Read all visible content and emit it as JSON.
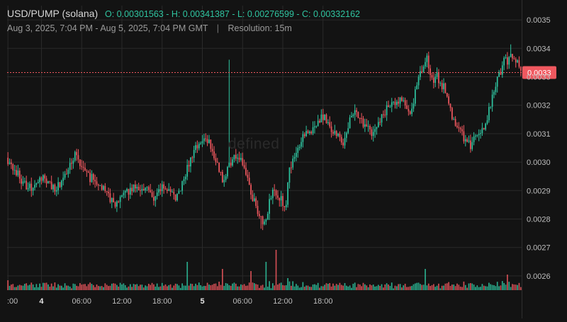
{
  "header": {
    "pair": "USD/PUMP (solana)",
    "ohlc": "O: 0.00301563 - H: 0.00341387 - L: 0.00276599 - C: 0.00332162",
    "range": "Aug 3, 2025, 7:04 PM - Aug 5, 2025, 7:04 PM GMT",
    "separator": "|",
    "resolution": "Resolution: 15m"
  },
  "watermark": "defined",
  "colors": {
    "up": "#2fc4a0",
    "down": "#f0585f",
    "background": "#131313",
    "grid": "#2a2a2a",
    "price_tag": "#f0585f"
  },
  "chart_data": {
    "type": "candlestick",
    "interval": "15m",
    "y_ticks": [
      "0.0026",
      "0.0027",
      "0.0028",
      "0.0029",
      "0.0030",
      "0.0031",
      "0.0032",
      "0.0033",
      "0.0034",
      "0.0035"
    ],
    "ylim": [
      0.00255,
      0.00355
    ],
    "x_ticks": [
      ":00",
      "4",
      "06:00",
      "12:00",
      "18:00",
      "5",
      "06:00",
      "12:00",
      "18:00"
    ],
    "current_price_label": "0.0033",
    "current_price": 0.003315,
    "open": 0.00301563,
    "high": 0.00341387,
    "low": 0.00276599,
    "close": 0.00332162,
    "anchors": [
      [
        0,
        0.003
      ],
      [
        4,
        0.00298
      ],
      [
        8,
        0.00293
      ],
      [
        12,
        0.00291
      ],
      [
        16,
        0.00292
      ],
      [
        20,
        0.00294
      ],
      [
        24,
        0.00293
      ],
      [
        28,
        0.0029
      ],
      [
        32,
        0.00293
      ],
      [
        36,
        0.00299
      ],
      [
        40,
        0.00302
      ],
      [
        44,
        0.00298
      ],
      [
        48,
        0.00295
      ],
      [
        52,
        0.00294
      ],
      [
        56,
        0.00291
      ],
      [
        60,
        0.00288
      ],
      [
        64,
        0.00285
      ],
      [
        68,
        0.00287
      ],
      [
        72,
        0.0029
      ],
      [
        76,
        0.00291
      ],
      [
        80,
        0.00289
      ],
      [
        84,
        0.0029
      ],
      [
        88,
        0.00287
      ],
      [
        92,
        0.00291
      ],
      [
        96,
        0.0029
      ],
      [
        100,
        0.00286
      ],
      [
        104,
        0.00292
      ],
      [
        108,
        0.003
      ],
      [
        112,
        0.00305
      ],
      [
        116,
        0.00308
      ],
      [
        118,
        0.00307
      ],
      [
        120,
        0.00307
      ],
      [
        124,
        0.003
      ],
      [
        128,
        0.00294
      ],
      [
        132,
        0.00299
      ],
      [
        136,
        0.00303
      ],
      [
        140,
        0.003
      ],
      [
        144,
        0.00292
      ],
      [
        148,
        0.00284
      ],
      [
        151,
        0.0028
      ],
      [
        152,
        0.00279
      ],
      [
        154,
        0.00281
      ],
      [
        158,
        0.00291
      ],
      [
        162,
        0.00287
      ],
      [
        166,
        0.00285
      ],
      [
        168,
        0.00298
      ],
      [
        171,
        0.00303
      ],
      [
        176,
        0.00309
      ],
      [
        180,
        0.00311
      ],
      [
        184,
        0.00314
      ],
      [
        188,
        0.00316
      ],
      [
        192,
        0.00313
      ],
      [
        196,
        0.0031
      ],
      [
        200,
        0.00307
      ],
      [
        204,
        0.00315
      ],
      [
        208,
        0.00318
      ],
      [
        212,
        0.00314
      ],
      [
        216,
        0.0031
      ],
      [
        220,
        0.00312
      ],
      [
        224,
        0.00317
      ],
      [
        228,
        0.0032
      ],
      [
        232,
        0.00321
      ],
      [
        236,
        0.00322
      ],
      [
        240,
        0.00318
      ],
      [
        244,
        0.00326
      ],
      [
        248,
        0.00335
      ],
      [
        250,
        0.00336
      ],
      [
        252,
        0.00329
      ],
      [
        256,
        0.0033
      ],
      [
        260,
        0.00326
      ],
      [
        264,
        0.00318
      ],
      [
        268,
        0.00312
      ],
      [
        272,
        0.00309
      ],
      [
        276,
        0.00306
      ],
      [
        280,
        0.00309
      ],
      [
        284,
        0.00312
      ],
      [
        288,
        0.0032
      ],
      [
        292,
        0.00329
      ],
      [
        296,
        0.00335
      ],
      [
        300,
        0.00337
      ],
      [
        304,
        0.00336
      ],
      [
        306,
        0.00332
      ]
    ]
  }
}
